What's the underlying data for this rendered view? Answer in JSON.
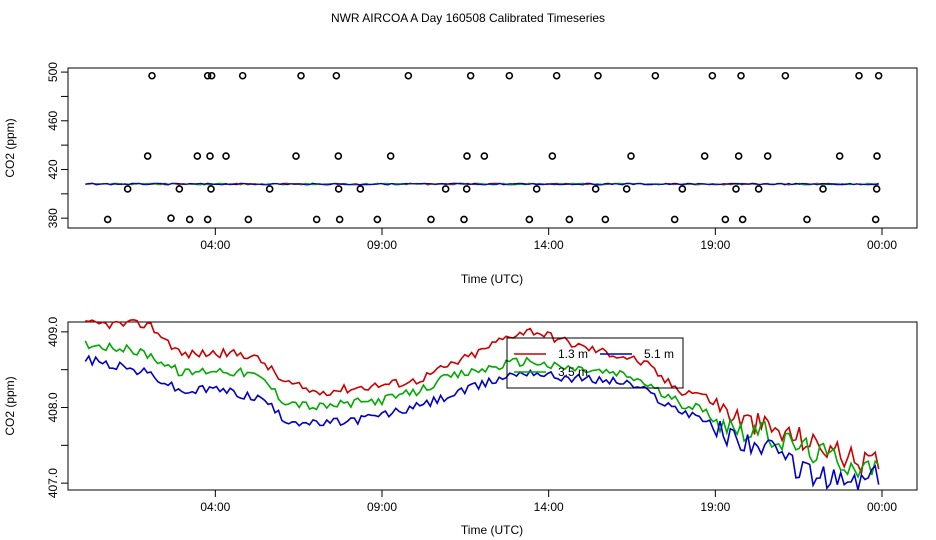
{
  "title": "NWR AIRCOA A  Day 160508  Calibrated Timeseries",
  "chart_data": [
    {
      "type": "scatter",
      "xlabel": "Time (UTC)",
      "ylabel": "CO2 (ppm)",
      "x_range_hours": [
        0.0,
        24.15
      ],
      "ylim": [
        367.0,
        505.0
      ],
      "x_ticks": [
        {
          "hour": 4,
          "label": "04:00"
        },
        {
          "hour": 9,
          "label": "09:00"
        },
        {
          "hour": 14,
          "label": "14:00"
        },
        {
          "hour": 19,
          "label": "19:00"
        },
        {
          "hour": 24,
          "label": "00:00"
        }
      ],
      "y_ticks": [
        {
          "value": 380,
          "label": "380"
        },
        {
          "value": 400,
          "label": ""
        },
        {
          "value": 420,
          "label": "420"
        },
        {
          "value": 440,
          "label": ""
        },
        {
          "value": 460,
          "label": "460"
        },
        {
          "value": 480,
          "label": ""
        },
        {
          "value": 500,
          "label": "500"
        }
      ],
      "colors": [
        "#cc0000",
        "#00aa00",
        "#0000cc"
      ],
      "baseline_value": 408.0,
      "outlier_points": {
        "x": [
          0.77,
          1.37,
          1.97,
          2.1,
          2.67,
          2.92,
          3.23,
          3.46,
          3.77,
          3.77,
          3.84,
          3.87,
          3.89,
          4.32,
          4.82,
          4.99,
          5.63,
          6.42,
          6.57,
          7.04,
          7.63,
          7.69,
          7.7,
          7.73,
          8.35,
          8.86,
          9.26,
          9.79,
          10.47,
          10.91,
          11.46,
          11.54,
          11.55,
          11.66,
          12.07,
          12.82,
          13.42,
          13.64,
          14.11,
          14.24,
          14.62,
          15.41,
          15.48,
          15.7,
          16.34,
          16.47,
          17.2,
          17.78,
          18.01,
          18.68,
          18.91,
          19.3,
          19.62,
          19.7,
          19.77,
          19.82,
          20.3,
          20.57,
          21.1,
          21.75,
          22.23,
          22.73,
          23.31,
          23.81,
          23.84,
          23.85,
          23.9
        ],
        "y": [
          379,
          404,
          431,
          497,
          380,
          404,
          379,
          431,
          379,
          497,
          431,
          404,
          497,
          431,
          497,
          379,
          404,
          431,
          497,
          379,
          497,
          431,
          404,
          379,
          404,
          379,
          431,
          497,
          379,
          404,
          379,
          404,
          431,
          497,
          431,
          497,
          379,
          404,
          431,
          497,
          379,
          404,
          497,
          379,
          404,
          431,
          497,
          379,
          404,
          431,
          497,
          379,
          404,
          431,
          497,
          379,
          404,
          431,
          497,
          379,
          404,
          431,
          497,
          379,
          404,
          431,
          497
        ]
      }
    },
    {
      "type": "line",
      "xlabel": "Time (UTC)",
      "ylabel": "CO2 (ppm)",
      "x_range_hours": [
        0.0,
        24.15
      ],
      "ylim": [
        406.85,
        409.15
      ],
      "x_ticks": [
        {
          "hour": 4,
          "label": "04:00"
        },
        {
          "hour": 9,
          "label": "09:00"
        },
        {
          "hour": 14,
          "label": "14:00"
        },
        {
          "hour": 19,
          "label": "19:00"
        },
        {
          "hour": 24,
          "label": "00:00"
        }
      ],
      "y_ticks": [
        {
          "value": 407.0,
          "label": "407.0"
        },
        {
          "value": 407.5,
          "label": ""
        },
        {
          "value": 408.0,
          "label": "408.0"
        },
        {
          "value": 408.5,
          "label": ""
        },
        {
          "value": 409.0,
          "label": "409.0"
        }
      ],
      "legend_position": "top-center",
      "x": [
        0.0,
        1.0,
        2.0,
        3.0,
        4.0,
        5.0,
        5.5,
        6.0,
        7.0,
        8.0,
        9.0,
        10.0,
        11.0,
        12.0,
        12.5,
        13.0,
        13.5,
        14.0,
        15.0,
        16.0,
        16.5,
        17.0,
        17.5,
        18.0,
        18.5,
        19.0,
        19.5,
        20.0,
        20.5,
        21.0,
        21.5,
        22.0,
        22.5,
        23.0,
        23.5,
        24.0
      ],
      "series": [
        {
          "name": "1.3 m",
          "color": "#cc0000",
          "values": [
            409.1,
            409.1,
            409.1,
            408.7,
            408.72,
            408.7,
            408.58,
            408.35,
            408.2,
            408.25,
            408.3,
            408.35,
            408.55,
            408.75,
            408.88,
            408.98,
            409.02,
            408.95,
            408.8,
            408.7,
            408.65,
            408.55,
            408.35,
            408.22,
            408.2,
            408.05,
            407.9,
            407.8,
            407.75,
            407.65,
            407.6,
            407.5,
            407.45,
            407.32,
            407.28,
            407.25
          ]
        },
        {
          "name": "3.5 m",
          "color": "#00aa00",
          "values": [
            408.85,
            408.8,
            408.7,
            408.45,
            408.5,
            408.45,
            408.35,
            408.1,
            408.0,
            408.05,
            408.1,
            408.2,
            408.4,
            408.5,
            408.55,
            408.6,
            408.62,
            408.55,
            408.5,
            408.45,
            408.4,
            408.3,
            408.15,
            408.05,
            408.0,
            407.85,
            407.75,
            407.7,
            407.65,
            407.55,
            407.5,
            407.4,
            407.35,
            407.25,
            407.2,
            407.2
          ]
        },
        {
          "name": "5.1 m",
          "color": "#0000cc",
          "values": [
            408.65,
            408.55,
            408.45,
            408.2,
            408.25,
            408.15,
            408.1,
            407.85,
            407.78,
            407.82,
            407.9,
            408.0,
            408.15,
            408.3,
            408.38,
            408.45,
            408.48,
            408.42,
            408.38,
            408.35,
            408.3,
            408.2,
            408.05,
            407.95,
            407.9,
            407.72,
            407.6,
            407.55,
            407.45,
            407.35,
            407.2,
            407.1,
            407.05,
            407.0,
            407.05,
            407.1
          ]
        }
      ]
    }
  ]
}
